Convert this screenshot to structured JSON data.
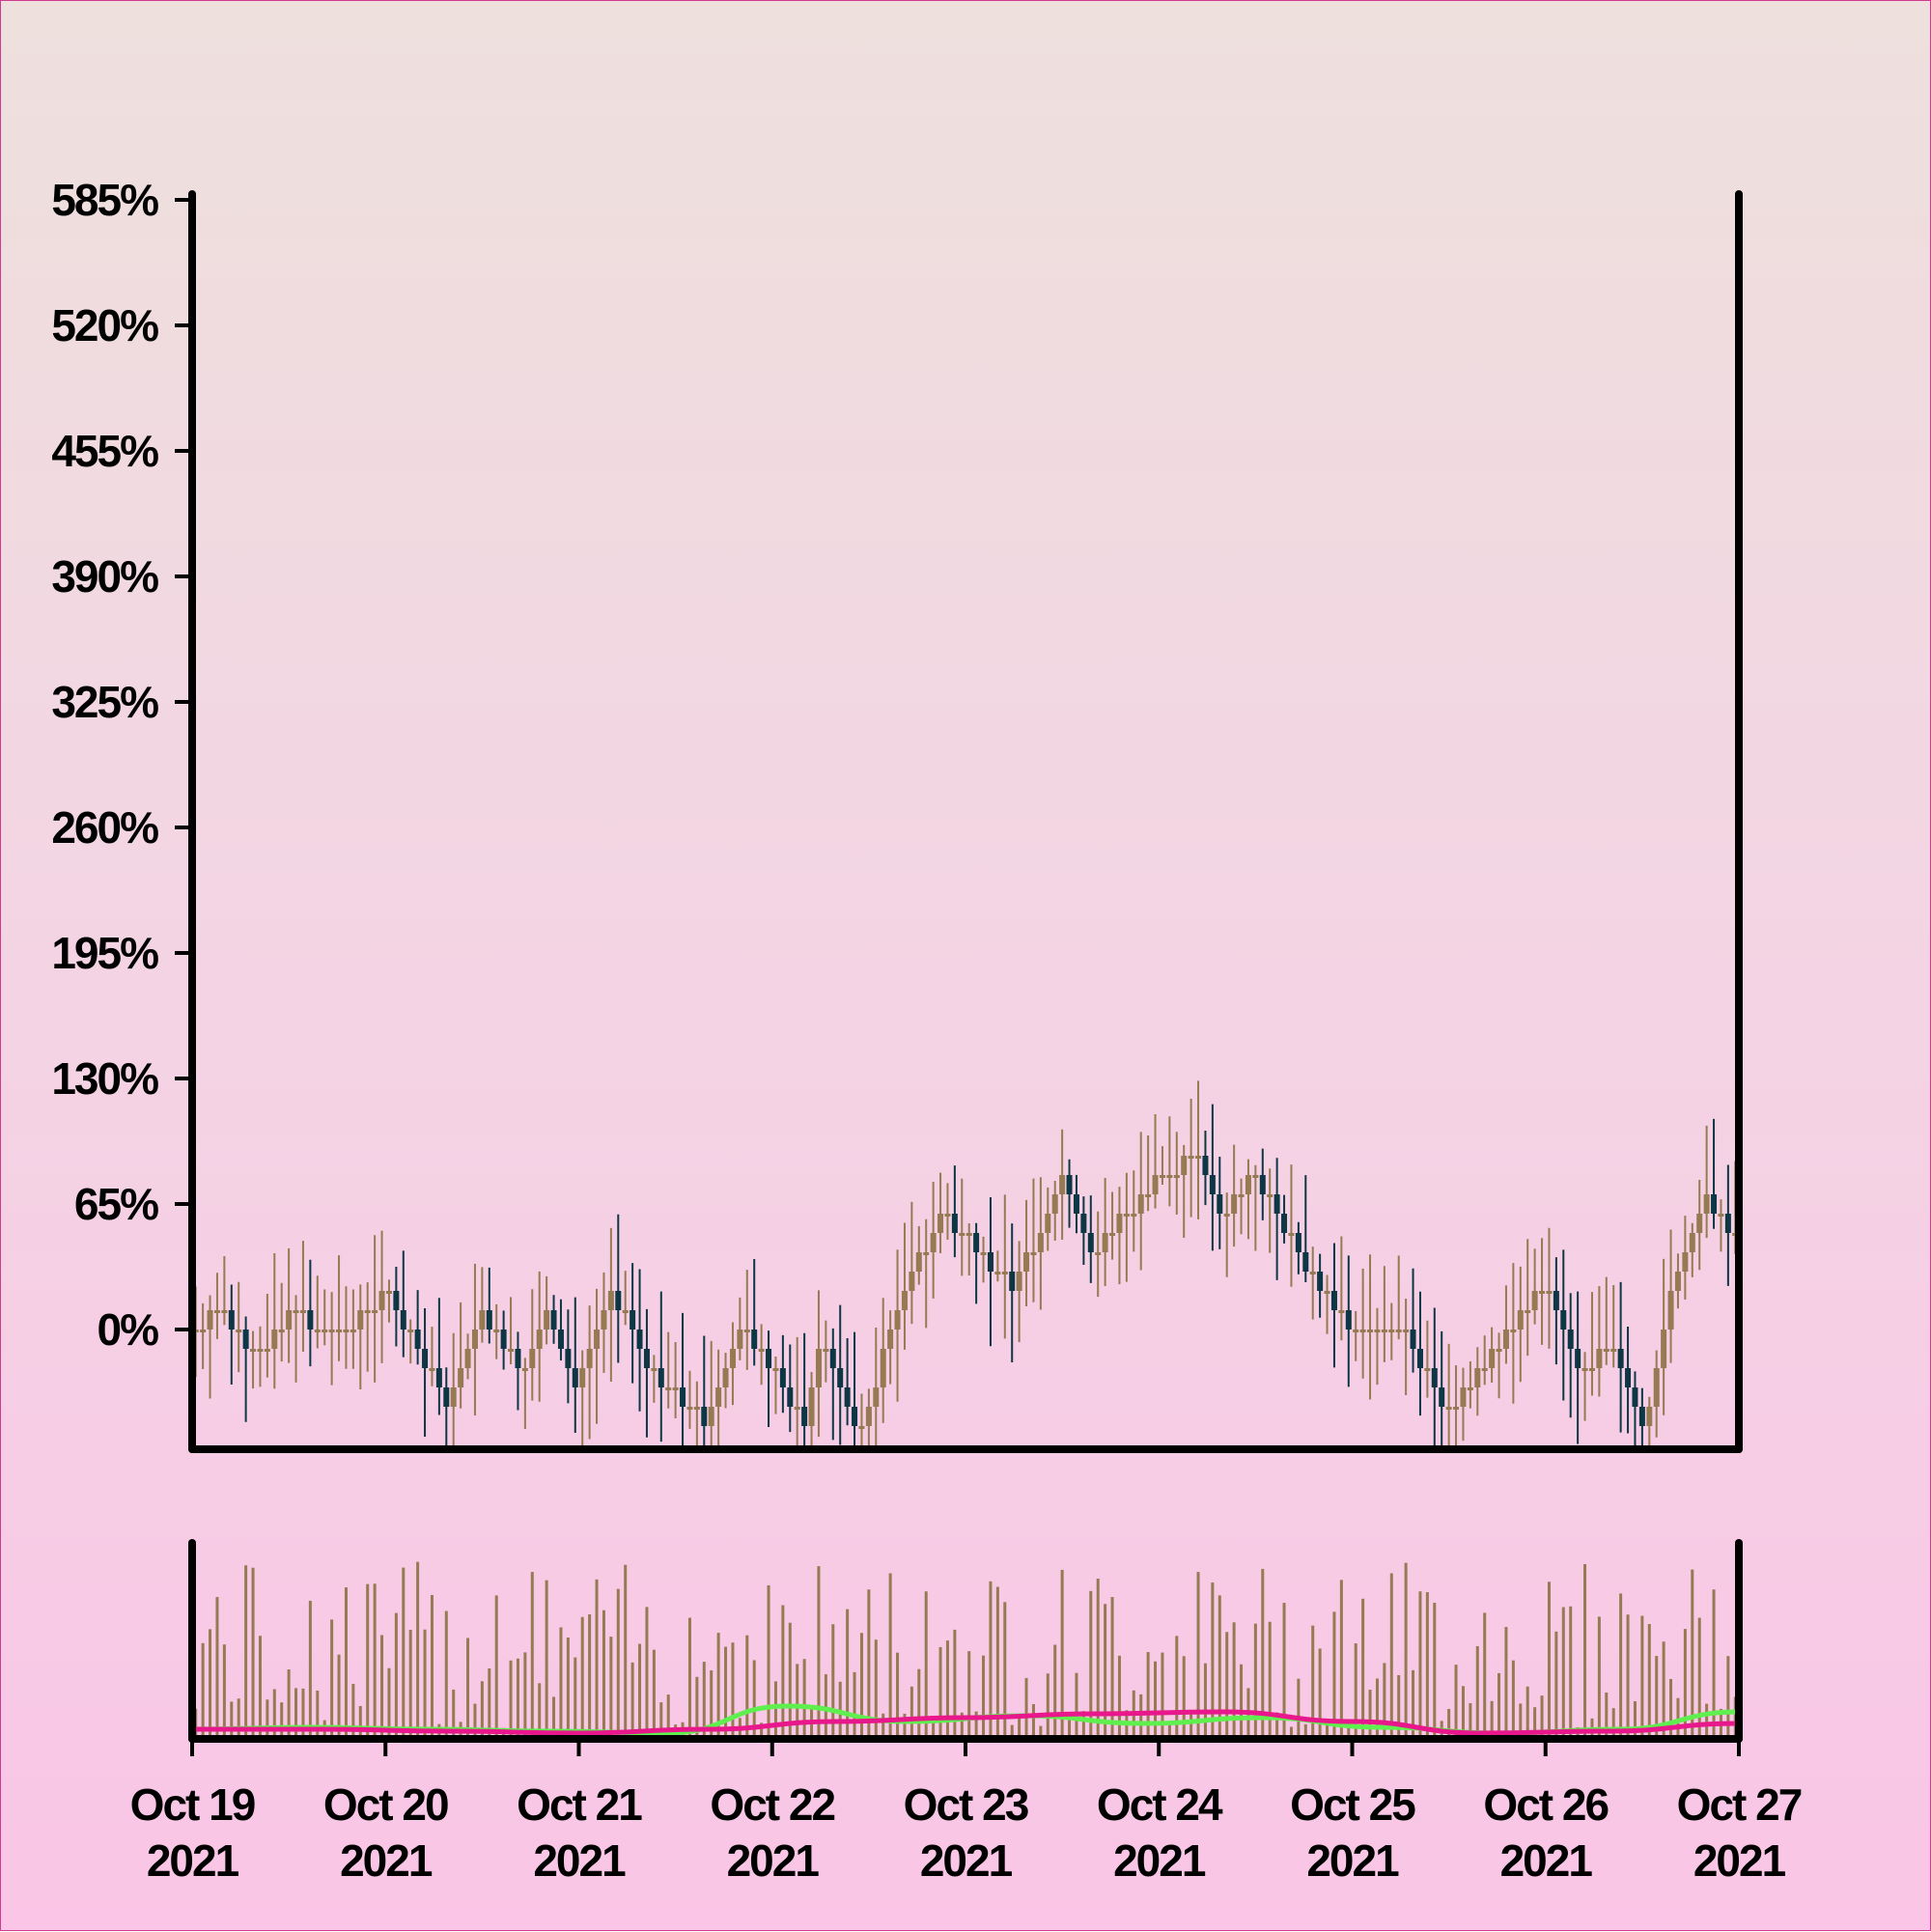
{
  "colors": {
    "candle_up": "#957a52",
    "candle_down": "#0d3745",
    "volume_bar": "#957a52",
    "ma_fast": "#5ff04f",
    "ma_slow": "#e8188c",
    "axis": "#000000"
  },
  "chart_data": {
    "type": "candlestick",
    "title": "",
    "xlabel": "",
    "ylabel": "",
    "y_tick_labels": [
      "585%",
      "520%",
      "455%",
      "390%",
      "325%",
      "260%",
      "195%",
      "130%",
      "65%",
      "0%"
    ],
    "y_ticks": [
      585,
      520,
      455,
      390,
      325,
      260,
      195,
      130,
      65,
      0
    ],
    "ylim": [
      -62,
      588
    ],
    "x_tick_labels": [
      {
        "month_day": "Oct 19",
        "year": "2021"
      },
      {
        "month_day": "Oct 20",
        "year": "2021"
      },
      {
        "month_day": "Oct 21",
        "year": "2021"
      },
      {
        "month_day": "Oct 22",
        "year": "2021"
      },
      {
        "month_day": "Oct 23",
        "year": "2021"
      },
      {
        "month_day": "Oct 24",
        "year": "2021"
      },
      {
        "month_day": "Oct 25",
        "year": "2021"
      },
      {
        "month_day": "Oct 26",
        "year": "2021"
      },
      {
        "month_day": "Oct 27",
        "year": "2021"
      }
    ],
    "xlim": [
      "2021-10-19",
      "2021-10-27"
    ],
    "grid": false,
    "close_path_pct": [
      [
        "2021-10-19T00:00",
        0
      ],
      [
        "2021-10-19T04:00",
        10
      ],
      [
        "2021-10-19T08:00",
        -15
      ],
      [
        "2021-10-19T12:00",
        10
      ],
      [
        "2021-10-19T18:00",
        -5
      ],
      [
        "2021-10-20T00:00",
        20
      ],
      [
        "2021-10-20T04:00",
        -10
      ],
      [
        "2021-10-20T08:00",
        -40
      ],
      [
        "2021-10-20T12:00",
        10
      ],
      [
        "2021-10-20T17:00",
        -20
      ],
      [
        "2021-10-20T20:00",
        10
      ],
      [
        "2021-10-21T00:00",
        -30
      ],
      [
        "2021-10-21T04:00",
        20
      ],
      [
        "2021-10-21T09:00",
        -20
      ],
      [
        "2021-10-21T16:00",
        -50
      ],
      [
        "2021-10-21T20:00",
        0
      ],
      [
        "2021-10-22T00:00",
        -20
      ],
      [
        "2021-10-22T04:00",
        -50
      ],
      [
        "2021-10-22T06:00",
        0
      ],
      [
        "2021-10-22T11:00",
        -55
      ],
      [
        "2021-10-22T16:00",
        20
      ],
      [
        "2021-10-22T21:00",
        60
      ],
      [
        "2021-10-23T02:00",
        40
      ],
      [
        "2021-10-23T06:00",
        20
      ],
      [
        "2021-10-23T12:00",
        80
      ],
      [
        "2021-10-23T16:00",
        40
      ],
      [
        "2021-10-24T00:00",
        80
      ],
      [
        "2021-10-24T05:00",
        90
      ],
      [
        "2021-10-24T08:00",
        60
      ],
      [
        "2021-10-24T12:00",
        80
      ],
      [
        "2021-10-24T20:00",
        20
      ],
      [
        "2021-10-25T00:00",
        0
      ],
      [
        "2021-10-25T06:00",
        0
      ],
      [
        "2021-10-25T12:00",
        -45
      ],
      [
        "2021-10-25T18:00",
        -10
      ],
      [
        "2021-10-26T00:00",
        25
      ],
      [
        "2021-10-26T04:00",
        -20
      ],
      [
        "2021-10-26T08:00",
        -10
      ],
      [
        "2021-10-26T12:00",
        -55
      ],
      [
        "2021-10-26T16:00",
        30
      ],
      [
        "2021-10-26T20:00",
        70
      ],
      [
        "2021-10-27T00:00",
        45
      ]
    ],
    "series": [
      {
        "type": "volume_moving_average_fast",
        "values": [
          0.02,
          0.03,
          0.02,
          0.01,
          0,
          0.14,
          0.06,
          0.09,
          0.05,
          0.08,
          0.03,
          0,
          0.02,
          0.11
        ]
      },
      {
        "type": "volume_moving_average_slow",
        "values": [
          0.02,
          0.02,
          0.01,
          0,
          0.02,
          0.06,
          0.08,
          0.1,
          0.11,
          0.06,
          0,
          0.01,
          0.05
        ]
      }
    ]
  }
}
